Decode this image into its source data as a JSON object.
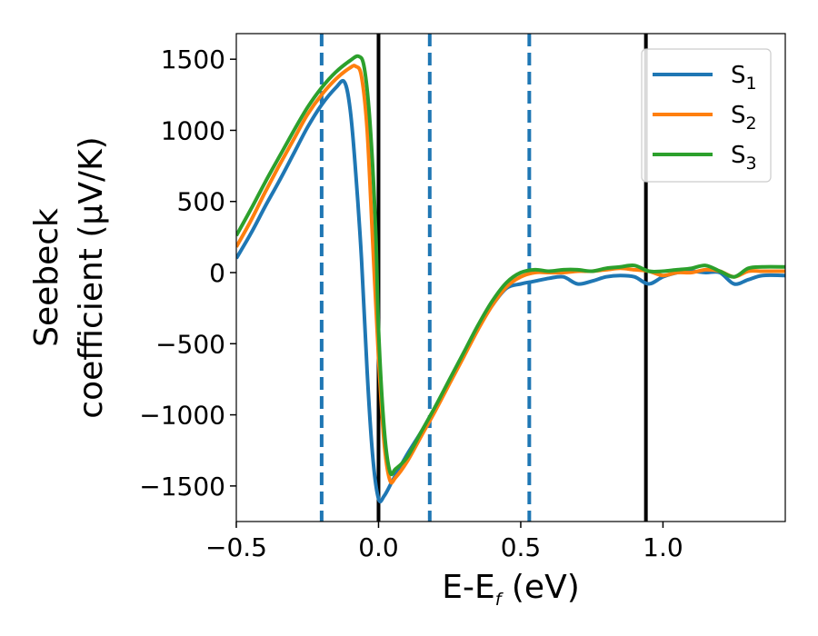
{
  "chart_data": {
    "type": "line",
    "title": "",
    "xlabel_main": "E-E",
    "xlabel_sub": "f",
    "xlabel_unit": " (eV)",
    "ylabel_line1": "Seebeck",
    "ylabel_line2": "coefficient  (μV/K)",
    "xlim": [
      -0.5,
      1.43
    ],
    "ylim": [
      -1750,
      1680
    ],
    "xticks": [
      -0.5,
      0.0,
      0.5,
      1.0
    ],
    "xtick_labels": [
      "−0.5",
      "0.0",
      "0.5",
      "1.0"
    ],
    "yticks": [
      -1500,
      -1000,
      -500,
      0,
      500,
      1000,
      1500
    ],
    "ytick_labels": [
      "−1500",
      "−1000",
      "−500",
      "0",
      "500",
      "1000",
      "1500"
    ],
    "grid": false,
    "legend_position": "top-right",
    "vlines_solid": {
      "color": "#000000",
      "x": [
        0.0,
        0.94
      ]
    },
    "vlines_dashed": {
      "color": "#1f77b4",
      "x": [
        -0.2,
        0.18,
        0.53
      ]
    },
    "series": [
      {
        "name": "S",
        "sub": "1",
        "color": "#1f77b4",
        "x": [
          -0.5,
          -0.45,
          -0.4,
          -0.35,
          -0.3,
          -0.25,
          -0.2,
          -0.15,
          -0.12,
          -0.1,
          -0.08,
          -0.06,
          -0.04,
          -0.02,
          0.0,
          0.02,
          0.05,
          0.1,
          0.15,
          0.2,
          0.25,
          0.3,
          0.35,
          0.4,
          0.45,
          0.5,
          0.55,
          0.6,
          0.65,
          0.7,
          0.75,
          0.8,
          0.85,
          0.9,
          0.95,
          1.0,
          1.05,
          1.1,
          1.15,
          1.2,
          1.25,
          1.3,
          1.35,
          1.43
        ],
        "y": [
          100,
          270,
          460,
          640,
          830,
          1020,
          1180,
          1300,
          1340,
          1150,
          700,
          100,
          -700,
          -1300,
          -1590,
          -1570,
          -1460,
          -1280,
          -1120,
          -950,
          -760,
          -570,
          -390,
          -230,
          -110,
          -80,
          -60,
          -40,
          -30,
          -80,
          -60,
          -30,
          -20,
          -30,
          -80,
          -30,
          0,
          10,
          0,
          0,
          -80,
          -50,
          -20,
          -20
        ]
      },
      {
        "name": "S",
        "sub": "2",
        "color": "#ff7f0e",
        "x": [
          -0.5,
          -0.45,
          -0.4,
          -0.35,
          -0.3,
          -0.25,
          -0.2,
          -0.15,
          -0.1,
          -0.08,
          -0.06,
          -0.04,
          -0.02,
          0.0,
          0.02,
          0.04,
          0.06,
          0.1,
          0.15,
          0.2,
          0.25,
          0.3,
          0.35,
          0.4,
          0.45,
          0.5,
          0.55,
          0.6,
          0.65,
          0.7,
          0.75,
          0.8,
          0.85,
          0.9,
          0.95,
          1.0,
          1.05,
          1.1,
          1.15,
          1.2,
          1.25,
          1.3,
          1.35,
          1.43
        ],
        "y": [
          180,
          360,
          560,
          750,
          930,
          1110,
          1250,
          1360,
          1440,
          1450,
          1380,
          1000,
          200,
          -600,
          -1200,
          -1460,
          -1440,
          -1330,
          -1150,
          -970,
          -780,
          -590,
          -400,
          -230,
          -100,
          -30,
          0,
          0,
          0,
          10,
          10,
          20,
          30,
          20,
          10,
          -20,
          0,
          0,
          20,
          10,
          -30,
          10,
          10,
          10
        ]
      },
      {
        "name": "S",
        "sub": "3",
        "color": "#2ca02c",
        "x": [
          -0.5,
          -0.45,
          -0.4,
          -0.35,
          -0.3,
          -0.25,
          -0.2,
          -0.15,
          -0.1,
          -0.07,
          -0.05,
          -0.03,
          -0.01,
          0.0,
          0.02,
          0.04,
          0.06,
          0.1,
          0.15,
          0.2,
          0.25,
          0.3,
          0.35,
          0.4,
          0.45,
          0.5,
          0.55,
          0.6,
          0.65,
          0.7,
          0.75,
          0.8,
          0.85,
          0.9,
          0.95,
          1.0,
          1.05,
          1.1,
          1.15,
          1.2,
          1.25,
          1.3,
          1.35,
          1.43
        ],
        "y": [
          260,
          440,
          630,
          810,
          990,
          1160,
          1300,
          1410,
          1490,
          1520,
          1440,
          1050,
          300,
          -400,
          -1100,
          -1400,
          -1380,
          -1300,
          -1120,
          -940,
          -750,
          -560,
          -370,
          -200,
          -70,
          0,
          20,
          10,
          20,
          20,
          10,
          30,
          40,
          50,
          10,
          10,
          20,
          30,
          50,
          10,
          -30,
          30,
          40,
          40
        ]
      }
    ]
  }
}
